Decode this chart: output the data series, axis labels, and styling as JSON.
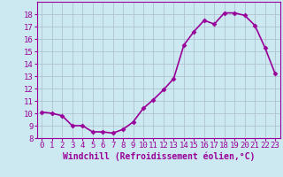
{
  "x": [
    0,
    1,
    2,
    3,
    4,
    5,
    6,
    7,
    8,
    9,
    10,
    11,
    12,
    13,
    14,
    15,
    16,
    17,
    18,
    19,
    20,
    21,
    22,
    23
  ],
  "y": [
    10.1,
    10.0,
    9.8,
    9.0,
    9.0,
    8.5,
    8.5,
    8.4,
    8.7,
    9.3,
    10.4,
    11.1,
    11.9,
    12.8,
    15.5,
    16.6,
    17.5,
    17.2,
    18.1,
    18.1,
    17.9,
    17.1,
    15.3,
    13.2
  ],
  "line_color": "#990099",
  "marker": "D",
  "marker_size": 2.5,
  "xlabel": "Windchill (Refroidissement éolien,°C)",
  "xlabel_fontsize": 7,
  "ylim": [
    8,
    19
  ],
  "xlim": [
    -0.5,
    23.5
  ],
  "yticks": [
    8,
    9,
    10,
    11,
    12,
    13,
    14,
    15,
    16,
    17,
    18
  ],
  "xtick_labels": [
    "0",
    "1",
    "2",
    "3",
    "4",
    "5",
    "6",
    "7",
    "8",
    "9",
    "10",
    "11",
    "12",
    "13",
    "14",
    "15",
    "16",
    "17",
    "18",
    "19",
    "20",
    "21",
    "22",
    "23"
  ],
  "background_color": "#cce8f0",
  "grid_color": "#aabbcc",
  "tick_fontsize": 6.5,
  "line_width": 1.2
}
